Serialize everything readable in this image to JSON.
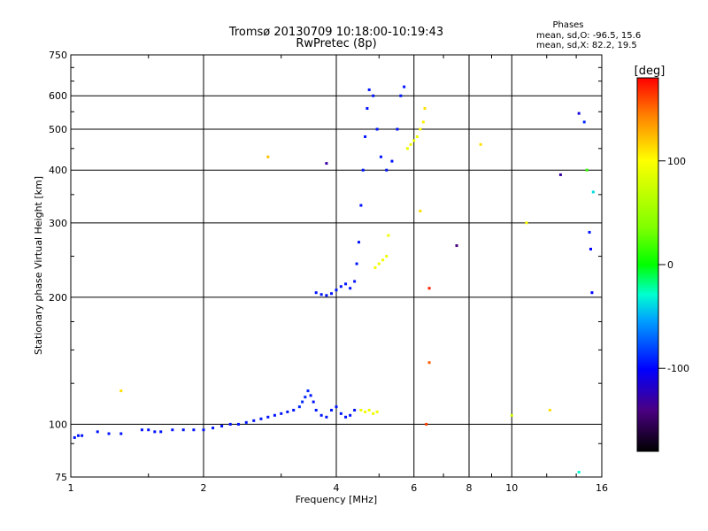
{
  "chart_data": {
    "type": "scatter",
    "title": "Tromsø 20130709 10:18:00-10:19:43",
    "subtitle": "RwPretec (8p)",
    "xlabel": "Frequency [MHz]",
    "ylabel": "Stationary phase Virtual Height [km]",
    "xscale": "log",
    "yscale": "log",
    "xlim": [
      1,
      16
    ],
    "ylim": [
      75,
      750
    ],
    "xticks": [
      1,
      2,
      4,
      6,
      8,
      10,
      16
    ],
    "yticks": [
      75,
      100,
      200,
      300,
      400,
      500,
      600,
      750
    ],
    "grid": true,
    "phase_box": {
      "title": "Phases",
      "line1": "mean, sd,O: -96.5, 15.6",
      "line2": "mean, sd,X: 82.2, 19.5"
    },
    "colorbar": {
      "label": "[deg]",
      "range": [
        -180,
        180
      ],
      "ticks": [
        100,
        0,
        -100
      ],
      "colormap": "rainbow: black (-180), blue (-100), cyan (-30), green (0), yellow (100), red (180)"
    },
    "series": [
      {
        "points": [
          [
            1.02,
            93,
            -95
          ],
          [
            1.04,
            94,
            -95
          ],
          [
            1.06,
            94,
            -95
          ],
          [
            1.15,
            96,
            -95
          ],
          [
            1.22,
            95,
            -95
          ],
          [
            1.3,
            95,
            -95
          ],
          [
            1.45,
            97,
            -95
          ],
          [
            1.5,
            97,
            -95
          ],
          [
            1.55,
            96,
            -95
          ],
          [
            1.6,
            96,
            -95
          ],
          [
            1.7,
            97,
            -95
          ],
          [
            1.8,
            97,
            -95
          ],
          [
            1.9,
            97,
            -95
          ],
          [
            2.0,
            97,
            -95
          ],
          [
            2.1,
            98,
            -95
          ],
          [
            2.2,
            99,
            -95
          ],
          [
            2.3,
            100,
            -95
          ],
          [
            2.4,
            100,
            -95
          ],
          [
            2.5,
            101,
            -95
          ],
          [
            2.6,
            102,
            -95
          ],
          [
            2.7,
            103,
            -95
          ],
          [
            2.8,
            104,
            -95
          ],
          [
            2.9,
            105,
            -95
          ],
          [
            3.0,
            106,
            -95
          ],
          [
            3.1,
            107,
            -95
          ],
          [
            3.2,
            108,
            -95
          ],
          [
            3.3,
            110,
            -90
          ],
          [
            3.35,
            113,
            -90
          ],
          [
            3.4,
            116,
            -90
          ],
          [
            3.45,
            120,
            -90
          ],
          [
            3.5,
            117,
            -95
          ],
          [
            3.55,
            113,
            -95
          ],
          [
            3.6,
            108,
            -95
          ],
          [
            3.7,
            105,
            -95
          ],
          [
            3.8,
            104,
            -95
          ],
          [
            3.9,
            108,
            -95
          ],
          [
            4.0,
            110,
            -95
          ],
          [
            4.1,
            106,
            -95
          ],
          [
            4.2,
            104,
            -95
          ],
          [
            4.3,
            105,
            -95
          ],
          [
            4.4,
            108,
            -95
          ],
          [
            4.55,
            108,
            95
          ],
          [
            4.65,
            107,
            95
          ],
          [
            4.75,
            108,
            95
          ],
          [
            4.85,
            106,
            95
          ],
          [
            4.95,
            107,
            95
          ],
          [
            3.6,
            205,
            -95
          ],
          [
            3.7,
            203,
            -95
          ],
          [
            3.8,
            202,
            -95
          ],
          [
            3.9,
            204,
            -95
          ],
          [
            4.0,
            208,
            -95
          ],
          [
            4.1,
            212,
            -95
          ],
          [
            4.2,
            215,
            -95
          ],
          [
            4.3,
            210,
            -95
          ],
          [
            4.4,
            218,
            -95
          ],
          [
            4.45,
            240,
            -95
          ],
          [
            4.5,
            270,
            -95
          ],
          [
            4.55,
            330,
            -95
          ],
          [
            4.6,
            400,
            -95
          ],
          [
            4.65,
            480,
            -95
          ],
          [
            4.7,
            560,
            -95
          ],
          [
            4.75,
            620,
            -95
          ],
          [
            4.85,
            600,
            -95
          ],
          [
            4.95,
            500,
            -95
          ],
          [
            5.05,
            430,
            -95
          ],
          [
            5.2,
            400,
            -95
          ],
          [
            5.35,
            420,
            -95
          ],
          [
            5.5,
            500,
            -95
          ],
          [
            5.6,
            600,
            -95
          ],
          [
            5.7,
            630,
            -95
          ],
          [
            4.9,
            235,
            95
          ],
          [
            5.0,
            240,
            95
          ],
          [
            5.1,
            245,
            95
          ],
          [
            5.2,
            250,
            95
          ],
          [
            5.25,
            280,
            95
          ],
          [
            5.8,
            450,
            90
          ],
          [
            5.9,
            460,
            95
          ],
          [
            6.0,
            470,
            95
          ],
          [
            6.1,
            480,
            95
          ],
          [
            6.2,
            500,
            100
          ],
          [
            6.3,
            520,
            105
          ],
          [
            6.35,
            560,
            110
          ],
          [
            2.8,
            430,
            120
          ],
          [
            3.8,
            415,
            -130
          ],
          [
            1.3,
            120,
            110
          ],
          [
            6.2,
            320,
            110
          ],
          [
            6.5,
            210,
            170
          ],
          [
            6.5,
            140,
            150
          ],
          [
            6.4,
            100,
            160
          ],
          [
            7.5,
            265,
            -140
          ],
          [
            8.5,
            460,
            110
          ],
          [
            10.0,
            105,
            80
          ],
          [
            10.8,
            300,
            100
          ],
          [
            12.2,
            108,
            110
          ],
          [
            12.9,
            390,
            -130
          ],
          [
            14.2,
            545,
            -110
          ],
          [
            14.6,
            520,
            -90
          ],
          [
            14.8,
            400,
            20
          ],
          [
            15.0,
            285,
            -95
          ],
          [
            15.1,
            260,
            -100
          ],
          [
            15.2,
            205,
            -100
          ],
          [
            15.3,
            355,
            -40
          ],
          [
            14.2,
            77,
            -30
          ]
        ]
      }
    ]
  }
}
